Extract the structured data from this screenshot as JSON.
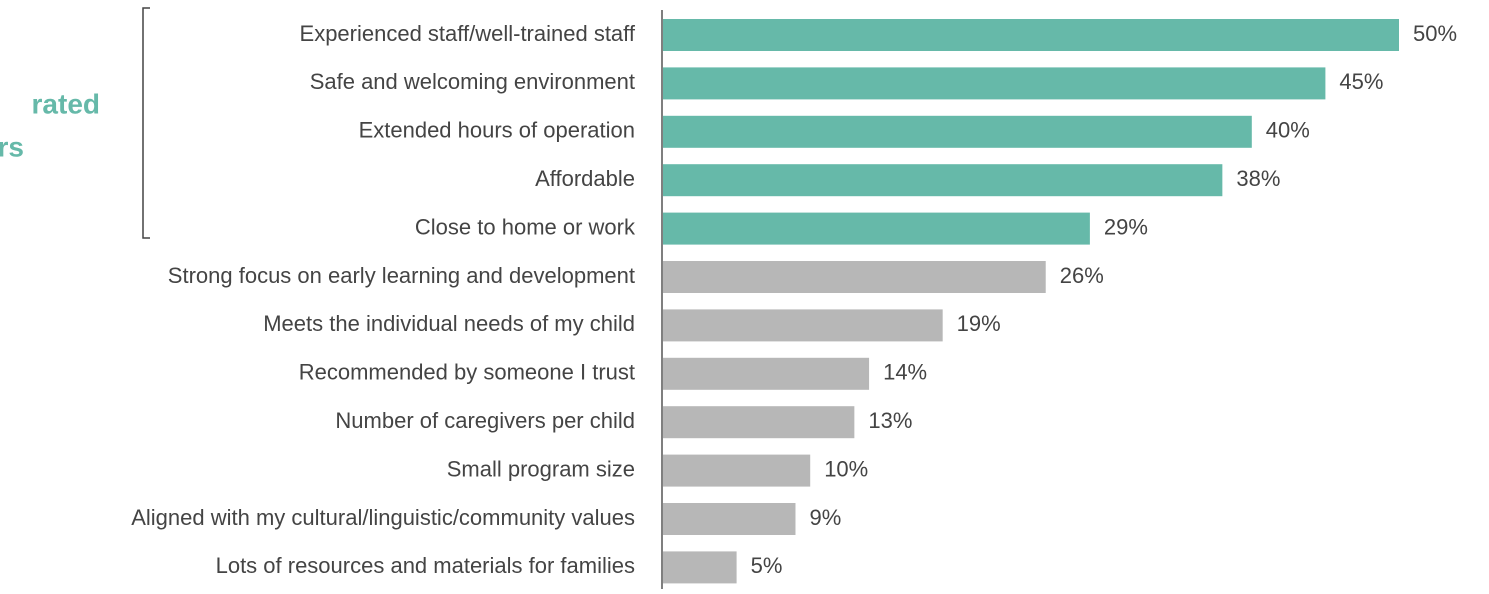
{
  "chart_data": {
    "type": "barh",
    "annotation": [
      "rated",
      "rs"
    ],
    "categories": [
      "Experienced staff/well-trained staff",
      "Safe and welcoming environment",
      "Extended hours of operation",
      "Affordable",
      "Close to home or work",
      "Strong focus on early learning and development",
      "Meets the individual needs of my child",
      "Recommended by someone I trust",
      "Number of caregivers per child",
      "Small program size",
      "Aligned with my cultural/linguistic/community values",
      "Lots of resources and materials for families"
    ],
    "values": [
      50,
      45,
      40,
      38,
      29,
      26,
      19,
      14,
      13,
      10,
      9,
      5
    ],
    "value_labels": [
      "50%",
      "45%",
      "40%",
      "38%",
      "29%",
      "26%",
      "19%",
      "14%",
      "13%",
      "10%",
      "9%",
      "5%"
    ],
    "colors": [
      "#66b9a9",
      "#66b9a9",
      "#66b9a9",
      "#66b9a9",
      "#66b9a9",
      "#b7b7b7",
      "#b7b7b7",
      "#b7b7b7",
      "#b7b7b7",
      "#b7b7b7",
      "#b7b7b7",
      "#b7b7b7"
    ]
  }
}
